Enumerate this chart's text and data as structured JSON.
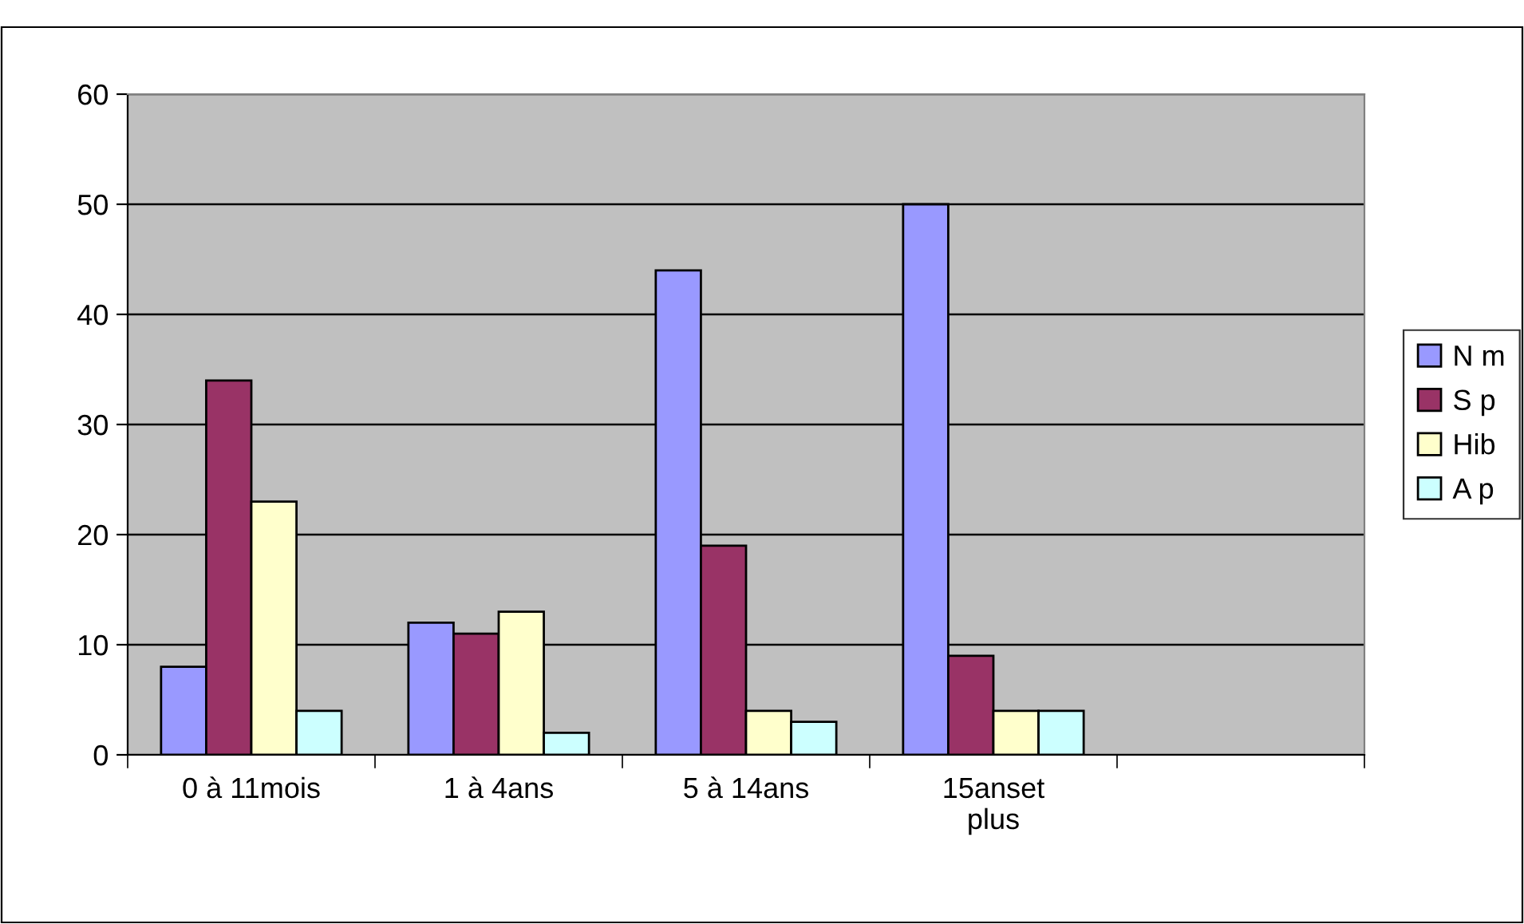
{
  "chart_data": {
    "type": "bar",
    "categories": [
      "0 à 11mois",
      "1 à 4ans",
      "5 à 14ans",
      "15anset\nplus",
      null
    ],
    "series": [
      {
        "name": "N m",
        "color": "#9999ff",
        "values": [
          8,
          12,
          44,
          50,
          null
        ]
      },
      {
        "name": "S p",
        "color": "#993366",
        "values": [
          34,
          11,
          19,
          9,
          null
        ]
      },
      {
        "name": "Hib",
        "color": "#ffffcc",
        "values": [
          23,
          13,
          4,
          4,
          null
        ]
      },
      {
        "name": "A p",
        "color": "#ccffff",
        "values": [
          4,
          2,
          3,
          4,
          null
        ]
      }
    ],
    "ylim": [
      0,
      60
    ],
    "yticks": [
      0,
      10,
      20,
      30,
      40,
      50,
      60
    ],
    "grid": "y",
    "legend": "right"
  }
}
